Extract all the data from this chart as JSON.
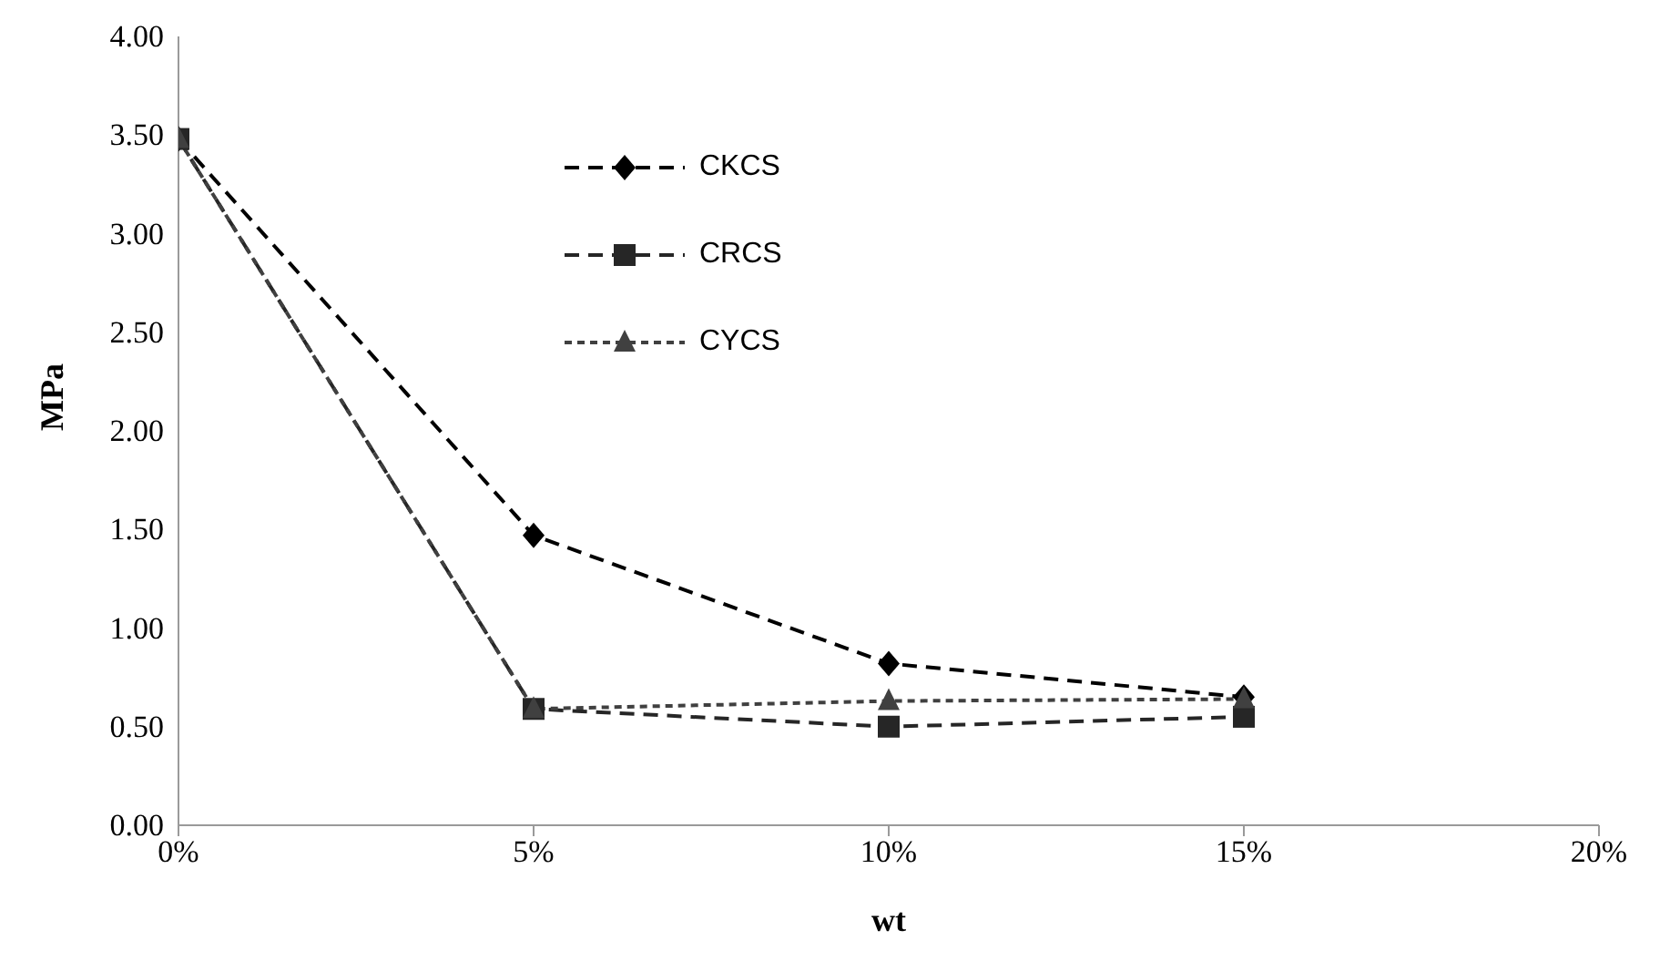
{
  "chart_data": {
    "type": "line",
    "xlabel": "wt",
    "ylabel": "MPa",
    "x": [
      0,
      5,
      10,
      15
    ],
    "xlim": [
      0,
      20
    ],
    "xticks": [
      {
        "value": 0,
        "label": "0%"
      },
      {
        "value": 5,
        "label": "5%"
      },
      {
        "value": 10,
        "label": "10%"
      },
      {
        "value": 15,
        "label": "15%"
      },
      {
        "value": 20,
        "label": "20%"
      }
    ],
    "ylim": [
      0,
      4
    ],
    "yticks": [
      {
        "value": 0,
        "label": "0.00"
      },
      {
        "value": 0.5,
        "label": "0.50"
      },
      {
        "value": 1,
        "label": "1.00"
      },
      {
        "value": 1.5,
        "label": "1.50"
      },
      {
        "value": 2,
        "label": "2.00"
      },
      {
        "value": 2.5,
        "label": "2.50"
      },
      {
        "value": 3,
        "label": "3.00"
      },
      {
        "value": 3.5,
        "label": "3.50"
      },
      {
        "value": 4,
        "label": "4.00"
      }
    ],
    "grid": false,
    "legend": "top",
    "series": [
      {
        "name": "CKCS",
        "color": "#000000",
        "marker": "diamond",
        "line_style": "dashed",
        "values": [
          3.48,
          1.47,
          0.82,
          0.65
        ]
      },
      {
        "name": "CRCS",
        "color": "#262626",
        "marker": "square",
        "line_style": "dashed",
        "values": [
          3.48,
          0.59,
          0.5,
          0.55
        ]
      },
      {
        "name": "CYCS",
        "color": "#404040",
        "marker": "triangle",
        "line_style": "dotted",
        "values": [
          3.48,
          0.59,
          0.63,
          0.64
        ]
      }
    ]
  }
}
